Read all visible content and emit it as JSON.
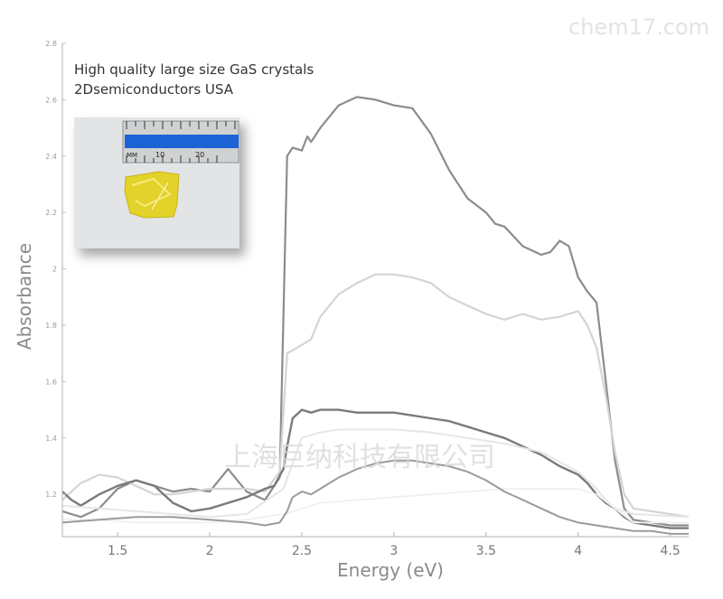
{
  "watermark": {
    "top_right": "chem17.com",
    "center": "上海巨纳科技有限公司"
  },
  "annotation": {
    "line1": "High quality large size GaS crystals",
    "line2": "2Dsemiconductors USA"
  },
  "inset": {
    "ruler_labels": [
      "MM",
      "10",
      "20"
    ]
  },
  "chart_data": {
    "type": "line",
    "title": "",
    "xlabel": "Energy (eV)",
    "ylabel": "Absorbance",
    "xlim": [
      1.2,
      4.6
    ],
    "ylim": [
      1.05,
      2.8
    ],
    "x_ticks": [
      1.5,
      2,
      2.5,
      3,
      3.5,
      4,
      4.5
    ],
    "x_tick_labels": [
      "1.5",
      "2",
      "2.5",
      "3",
      "3.5",
      "4",
      "4.5"
    ],
    "y_ticks": [
      1.2,
      1.4,
      1.6,
      1.8,
      2,
      2.2,
      2.4,
      2.6,
      2.8
    ],
    "y_tick_labels": [
      "1.2",
      "1.4",
      "1.6",
      "1.8",
      "2",
      "2.2",
      "2.4",
      "2.6",
      "2.8"
    ],
    "grid": false,
    "series": [
      {
        "color": "#8c8c8c",
        "width": 2.2,
        "x": [
          1.2,
          1.3,
          1.4,
          1.5,
          1.6,
          1.7,
          1.8,
          1.9,
          2.0,
          2.1,
          2.2,
          2.3,
          2.38,
          2.42,
          2.45,
          2.5,
          2.53,
          2.55,
          2.6,
          2.7,
          2.8,
          2.9,
          3.0,
          3.1,
          3.2,
          3.3,
          3.4,
          3.5,
          3.55,
          3.6,
          3.7,
          3.8,
          3.85,
          3.9,
          3.95,
          4.0,
          4.05,
          4.1,
          4.15,
          4.2,
          4.25,
          4.3,
          4.4,
          4.5,
          4.6
        ],
        "y": [
          1.14,
          1.12,
          1.15,
          1.22,
          1.25,
          1.23,
          1.21,
          1.22,
          1.21,
          1.29,
          1.21,
          1.18,
          1.26,
          2.4,
          2.43,
          2.42,
          2.47,
          2.45,
          2.5,
          2.58,
          2.61,
          2.6,
          2.58,
          2.57,
          2.48,
          2.35,
          2.25,
          2.2,
          2.16,
          2.15,
          2.08,
          2.05,
          2.06,
          2.1,
          2.08,
          1.97,
          1.92,
          1.88,
          1.6,
          1.32,
          1.15,
          1.11,
          1.1,
          1.09,
          1.09
        ]
      },
      {
        "color": "#d4d4d4",
        "width": 2.2,
        "x": [
          1.2,
          1.3,
          1.4,
          1.5,
          1.6,
          1.7,
          1.8,
          1.9,
          2.0,
          2.1,
          2.2,
          2.3,
          2.38,
          2.42,
          2.5,
          2.55,
          2.6,
          2.7,
          2.8,
          2.9,
          3.0,
          3.1,
          3.2,
          3.3,
          3.4,
          3.5,
          3.6,
          3.7,
          3.8,
          3.9,
          4.0,
          4.05,
          4.1,
          4.15,
          4.2,
          4.25,
          4.3,
          4.4,
          4.5,
          4.6
        ],
        "y": [
          1.18,
          1.24,
          1.27,
          1.26,
          1.23,
          1.2,
          1.2,
          1.21,
          1.22,
          1.22,
          1.22,
          1.21,
          1.28,
          1.7,
          1.73,
          1.75,
          1.83,
          1.91,
          1.95,
          1.98,
          1.98,
          1.97,
          1.95,
          1.9,
          1.87,
          1.84,
          1.82,
          1.84,
          1.82,
          1.83,
          1.85,
          1.8,
          1.72,
          1.55,
          1.35,
          1.2,
          1.15,
          1.14,
          1.13,
          1.12
        ]
      },
      {
        "color": "#7a7a7a",
        "width": 2.4,
        "x": [
          1.2,
          1.25,
          1.3,
          1.4,
          1.5,
          1.6,
          1.7,
          1.8,
          1.9,
          2.0,
          2.1,
          2.2,
          2.3,
          2.35,
          2.4,
          2.42,
          2.45,
          2.5,
          2.55,
          2.6,
          2.7,
          2.8,
          2.9,
          3.0,
          3.1,
          3.2,
          3.3,
          3.4,
          3.5,
          3.6,
          3.7,
          3.8,
          3.9,
          4.0,
          4.05,
          4.1,
          4.15,
          4.2,
          4.25,
          4.3,
          4.4,
          4.5,
          4.6
        ],
        "y": [
          1.21,
          1.18,
          1.16,
          1.2,
          1.23,
          1.25,
          1.23,
          1.17,
          1.14,
          1.15,
          1.17,
          1.19,
          1.22,
          1.23,
          1.29,
          1.37,
          1.47,
          1.5,
          1.49,
          1.5,
          1.5,
          1.49,
          1.49,
          1.49,
          1.48,
          1.47,
          1.46,
          1.44,
          1.42,
          1.4,
          1.37,
          1.34,
          1.3,
          1.27,
          1.24,
          1.2,
          1.17,
          1.15,
          1.12,
          1.1,
          1.09,
          1.08,
          1.08
        ]
      },
      {
        "color": "#e6e6e6",
        "width": 2,
        "x": [
          1.2,
          1.4,
          1.6,
          1.8,
          2.0,
          2.2,
          2.4,
          2.5,
          2.6,
          2.7,
          2.8,
          3.0,
          3.2,
          3.4,
          3.6,
          3.8,
          4.0,
          4.1,
          4.15,
          4.2,
          4.3,
          4.6
        ],
        "y": [
          1.16,
          1.15,
          1.14,
          1.13,
          1.12,
          1.13,
          1.22,
          1.4,
          1.42,
          1.43,
          1.43,
          1.43,
          1.42,
          1.4,
          1.38,
          1.35,
          1.28,
          1.22,
          1.18,
          1.15,
          1.13,
          1.12
        ]
      },
      {
        "color": "#f0f0f0",
        "width": 1.8,
        "x": [
          1.2,
          1.4,
          1.6,
          1.8,
          2.0,
          2.2,
          2.4,
          2.5,
          2.6,
          2.8,
          3.0,
          3.2,
          3.4,
          3.6,
          3.8,
          4.0,
          4.1,
          4.2,
          4.3,
          4.6
        ],
        "y": [
          1.11,
          1.11,
          1.1,
          1.1,
          1.1,
          1.11,
          1.13,
          1.15,
          1.17,
          1.18,
          1.19,
          1.2,
          1.21,
          1.22,
          1.22,
          1.22,
          1.2,
          1.15,
          1.1,
          1.1
        ]
      },
      {
        "color": "#9b9b9b",
        "width": 2,
        "x": [
          1.2,
          1.4,
          1.6,
          1.8,
          2.0,
          2.2,
          2.3,
          2.38,
          2.42,
          2.45,
          2.5,
          2.55,
          2.6,
          2.7,
          2.8,
          2.9,
          3.0,
          3.1,
          3.2,
          3.3,
          3.4,
          3.5,
          3.6,
          3.7,
          3.8,
          3.9,
          4.0,
          4.1,
          4.2,
          4.3,
          4.4,
          4.5,
          4.6
        ],
        "y": [
          1.1,
          1.11,
          1.12,
          1.12,
          1.11,
          1.1,
          1.09,
          1.1,
          1.14,
          1.19,
          1.21,
          1.2,
          1.22,
          1.26,
          1.29,
          1.31,
          1.32,
          1.32,
          1.31,
          1.3,
          1.28,
          1.25,
          1.21,
          1.18,
          1.15,
          1.12,
          1.1,
          1.09,
          1.08,
          1.07,
          1.07,
          1.06,
          1.06
        ]
      }
    ]
  }
}
